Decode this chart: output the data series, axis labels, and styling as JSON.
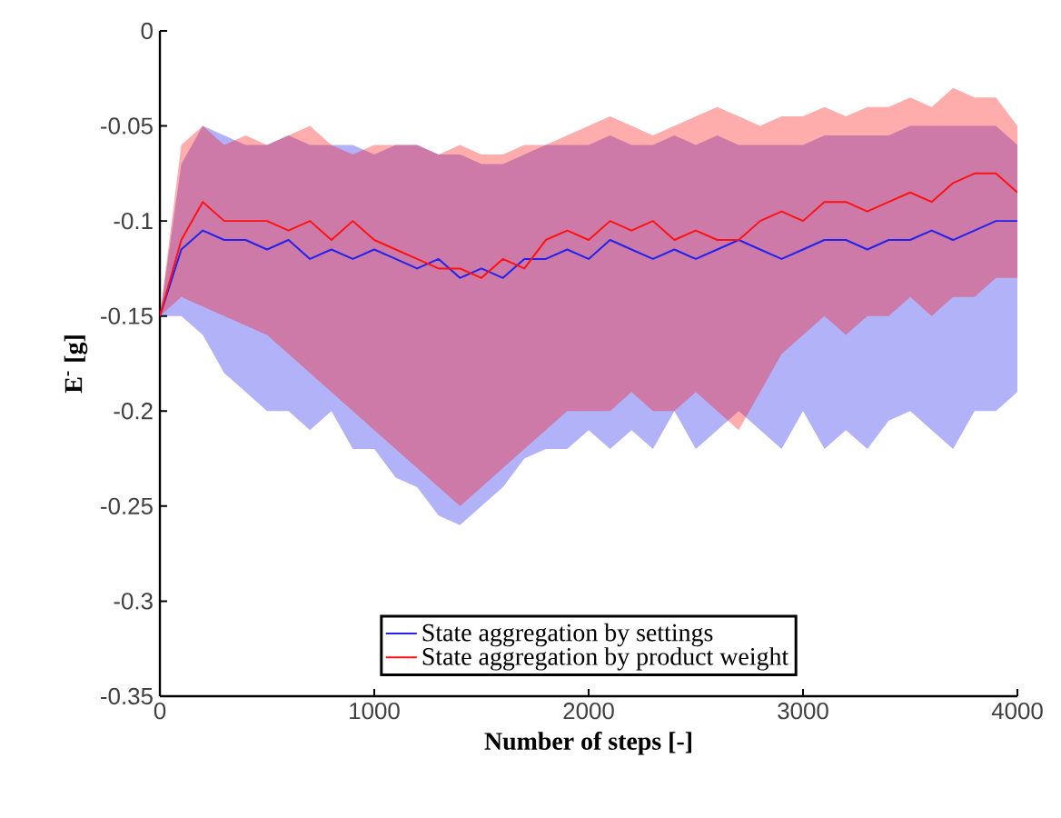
{
  "chart_data": {
    "type": "line",
    "xlabel": "Number of steps [-]",
    "ylabel": "E$^{-}$ [g]",
    "xlim": [
      0,
      4000
    ],
    "ylim": [
      -0.35,
      0
    ],
    "xticks": [
      0,
      1000,
      2000,
      3000,
      4000
    ],
    "yticks": [
      -0.35,
      -0.3,
      -0.25,
      -0.2,
      -0.15,
      -0.1,
      -0.05,
      0
    ],
    "grid": false,
    "legend": "bottom",
    "marker": "none",
    "line_style": "solid",
    "x": [
      0,
      100,
      200,
      300,
      400,
      500,
      600,
      700,
      800,
      900,
      1000,
      1100,
      1200,
      1300,
      1400,
      1500,
      1600,
      1700,
      1800,
      1900,
      2000,
      2100,
      2200,
      2300,
      2400,
      2500,
      2600,
      2700,
      2800,
      2900,
      3000,
      3100,
      3200,
      3300,
      3400,
      3500,
      3600,
      3700,
      3800,
      3900,
      4000
    ],
    "series": [
      {
        "name": "State aggregation by settings",
        "color": "#2222ee",
        "values": [
          -0.15,
          -0.115,
          -0.105,
          -0.11,
          -0.11,
          -0.115,
          -0.11,
          -0.12,
          -0.115,
          -0.12,
          -0.115,
          -0.12,
          -0.125,
          -0.12,
          -0.13,
          -0.125,
          -0.13,
          -0.12,
          -0.12,
          -0.115,
          -0.12,
          -0.11,
          -0.115,
          -0.12,
          -0.115,
          -0.12,
          -0.115,
          -0.11,
          -0.115,
          -0.12,
          -0.115,
          -0.11,
          -0.11,
          -0.115,
          -0.11,
          -0.11,
          -0.105,
          -0.11,
          -0.105,
          -0.1,
          -0.1
        ],
        "upper": [
          -0.15,
          -0.07,
          -0.05,
          -0.055,
          -0.06,
          -0.06,
          -0.055,
          -0.06,
          -0.06,
          -0.06,
          -0.065,
          -0.06,
          -0.06,
          -0.065,
          -0.065,
          -0.07,
          -0.07,
          -0.065,
          -0.06,
          -0.06,
          -0.06,
          -0.055,
          -0.06,
          -0.06,
          -0.055,
          -0.06,
          -0.055,
          -0.06,
          -0.06,
          -0.06,
          -0.06,
          -0.055,
          -0.055,
          -0.055,
          -0.055,
          -0.05,
          -0.05,
          -0.05,
          -0.05,
          -0.05,
          -0.06
        ],
        "lower": [
          -0.15,
          -0.15,
          -0.16,
          -0.18,
          -0.19,
          -0.2,
          -0.2,
          -0.21,
          -0.2,
          -0.22,
          -0.22,
          -0.235,
          -0.24,
          -0.255,
          -0.26,
          -0.25,
          -0.24,
          -0.225,
          -0.22,
          -0.22,
          -0.21,
          -0.22,
          -0.21,
          -0.22,
          -0.2,
          -0.22,
          -0.21,
          -0.2,
          -0.21,
          -0.22,
          -0.2,
          -0.22,
          -0.21,
          -0.22,
          -0.205,
          -0.2,
          -0.21,
          -0.22,
          -0.2,
          -0.2,
          -0.19
        ]
      },
      {
        "name": "State aggregation by product weight",
        "color": "#ff1111",
        "values": [
          -0.15,
          -0.11,
          -0.09,
          -0.1,
          -0.1,
          -0.1,
          -0.105,
          -0.1,
          -0.11,
          -0.1,
          -0.11,
          -0.115,
          -0.12,
          -0.125,
          -0.125,
          -0.13,
          -0.12,
          -0.125,
          -0.11,
          -0.105,
          -0.11,
          -0.1,
          -0.105,
          -0.1,
          -0.11,
          -0.105,
          -0.11,
          -0.11,
          -0.1,
          -0.095,
          -0.1,
          -0.09,
          -0.09,
          -0.095,
          -0.09,
          -0.085,
          -0.09,
          -0.08,
          -0.075,
          -0.075,
          -0.085
        ],
        "upper": [
          -0.15,
          -0.06,
          -0.05,
          -0.06,
          -0.055,
          -0.06,
          -0.055,
          -0.05,
          -0.06,
          -0.065,
          -0.06,
          -0.06,
          -0.06,
          -0.065,
          -0.06,
          -0.065,
          -0.065,
          -0.06,
          -0.06,
          -0.055,
          -0.05,
          -0.045,
          -0.05,
          -0.055,
          -0.05,
          -0.045,
          -0.04,
          -0.045,
          -0.05,
          -0.045,
          -0.045,
          -0.04,
          -0.045,
          -0.04,
          -0.04,
          -0.035,
          -0.04,
          -0.03,
          -0.035,
          -0.035,
          -0.05
        ],
        "lower": [
          -0.15,
          -0.14,
          -0.145,
          -0.15,
          -0.155,
          -0.16,
          -0.17,
          -0.18,
          -0.19,
          -0.2,
          -0.21,
          -0.22,
          -0.23,
          -0.24,
          -0.25,
          -0.24,
          -0.23,
          -0.22,
          -0.21,
          -0.2,
          -0.2,
          -0.2,
          -0.19,
          -0.2,
          -0.2,
          -0.19,
          -0.2,
          -0.21,
          -0.19,
          -0.17,
          -0.16,
          -0.15,
          -0.16,
          -0.15,
          -0.15,
          -0.14,
          -0.15,
          -0.14,
          -0.14,
          -0.13,
          -0.13
        ]
      }
    ]
  }
}
